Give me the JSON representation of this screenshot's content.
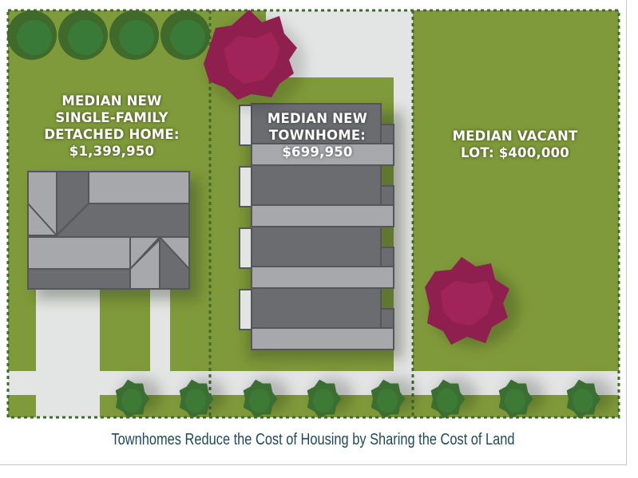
{
  "labels": {
    "single_family": [
      "MEDIAN NEW",
      "SINGLE-FAMILY",
      "DETACHED HOME:",
      "$1,399,950"
    ],
    "townhome": [
      "MEDIAN NEW",
      "TOWNHOME:",
      "$699,950"
    ],
    "vacant_lot": [
      "MEDIAN VACANT",
      "LOT: $400,000"
    ]
  },
  "caption": "Townhomes Reduce the Cost of Housing by Sharing the Cost of Land",
  "colors": {
    "grass": "#7f9a3a",
    "paving": "#e3e4e4",
    "roof_dark": "#6b6c70",
    "roof_light": "#a7a8ab",
    "tree_green": "#3b6e32",
    "tree_red": "#8e1f4f",
    "caption": "#1d4a5c",
    "lot_line": "#3f6a2c"
  }
}
